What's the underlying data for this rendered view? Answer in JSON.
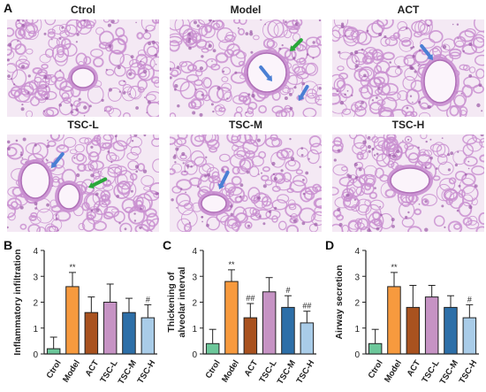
{
  "figure": {
    "panel_a_letter": "A",
    "histology": [
      {
        "label": "Ctrol",
        "arrows": []
      },
      {
        "label": "Model",
        "arrows": [
          "blue",
          "blue",
          "green"
        ]
      },
      {
        "label": "ACT",
        "arrows": [
          "blue"
        ]
      },
      {
        "label": "TSC-L",
        "arrows": [
          "blue",
          "green"
        ]
      },
      {
        "label": "TSC-M",
        "arrows": [
          "blue"
        ]
      },
      {
        "label": "TSC-H",
        "arrows": []
      }
    ],
    "colors": {
      "tissue": "#c98fd0",
      "background": "#f4e9f4",
      "vessel": "#e3b9e3",
      "arrow_blue": "#4a7fd4",
      "arrow_green": "#2aa83a"
    }
  },
  "chart_data": [
    {
      "type": "bar",
      "panel_letter": "B",
      "ylabel": [
        "Inflammatory infiltration"
      ],
      "categories": [
        "Ctrol",
        "Model",
        "ACT",
        "TSC-L",
        "TSC-M",
        "TSC-H"
      ],
      "values": [
        0.2,
        2.6,
        1.6,
        2.0,
        1.6,
        1.4
      ],
      "errors": [
        0.45,
        0.55,
        0.6,
        0.7,
        0.55,
        0.5
      ],
      "annotations": [
        "",
        "**",
        "",
        "",
        "",
        "#"
      ],
      "ylim": [
        0,
        4
      ],
      "yticks": [
        "0",
        "1",
        "2",
        "3",
        "4"
      ],
      "bar_colors": [
        "#6cc79a",
        "#f79a3e",
        "#a9521f",
        "#c693c4",
        "#2d6fa8",
        "#a9cce8"
      ]
    },
    {
      "type": "bar",
      "panel_letter": "C",
      "ylabel": [
        "Thickening of",
        "alveolar interval"
      ],
      "categories": [
        "Ctrol",
        "Model",
        "ACT",
        "TSC-L",
        "TSC-M",
        "TSC-H"
      ],
      "values": [
        0.4,
        2.8,
        1.4,
        2.4,
        1.8,
        1.2
      ],
      "errors": [
        0.55,
        0.45,
        0.55,
        0.55,
        0.45,
        0.45
      ],
      "annotations": [
        "",
        "**",
        "##",
        "",
        "#",
        "##"
      ],
      "ylim": [
        0,
        4
      ],
      "yticks": [
        "0",
        "1",
        "2",
        "3",
        "4"
      ],
      "bar_colors": [
        "#6cc79a",
        "#f79a3e",
        "#a9521f",
        "#c693c4",
        "#2d6fa8",
        "#a9cce8"
      ]
    },
    {
      "type": "bar",
      "panel_letter": "D",
      "ylabel": [
        "Airway secretion"
      ],
      "categories": [
        "Ctrol",
        "Model",
        "ACT",
        "TSC-L",
        "TSC-M",
        "TSC-H"
      ],
      "values": [
        0.4,
        2.6,
        1.8,
        2.2,
        1.8,
        1.4
      ],
      "errors": [
        0.55,
        0.55,
        0.85,
        0.45,
        0.45,
        0.5
      ],
      "annotations": [
        "",
        "**",
        "",
        "",
        "",
        "#"
      ],
      "ylim": [
        0,
        4
      ],
      "yticks": [
        "0",
        "1",
        "2",
        "3",
        "4"
      ],
      "bar_colors": [
        "#6cc79a",
        "#f79a3e",
        "#a9521f",
        "#c693c4",
        "#2d6fa8",
        "#a9cce8"
      ]
    }
  ]
}
